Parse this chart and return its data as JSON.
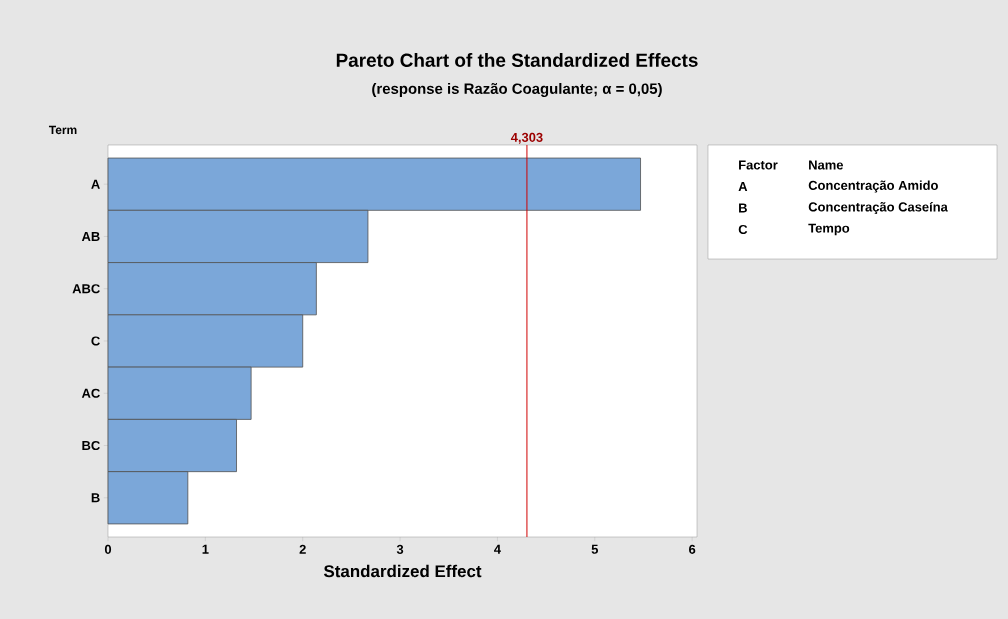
{
  "chart_data": {
    "type": "bar",
    "orientation": "horizontal",
    "title": "Pareto Chart of the Standardized Effects",
    "subtitle": "(response is Razão Coagulante; α = 0,05)",
    "xlabel": "Standardized Effect",
    "ylabel": "Term",
    "categories": [
      "A",
      "AB",
      "ABC",
      "C",
      "AC",
      "BC",
      "B"
    ],
    "values": [
      5.47,
      2.67,
      2.14,
      2.0,
      1.47,
      1.32,
      0.82
    ],
    "color": "#7ba7d9",
    "xlim": [
      0,
      6.05
    ],
    "xticks": [
      0,
      1,
      2,
      3,
      4,
      5,
      6
    ],
    "ref_lines": [
      {
        "axis": "x",
        "value": 4.303,
        "label": "4,303",
        "color": "#d00000"
      }
    ],
    "annotations": [
      "Factor",
      "Name",
      "A",
      "Concentração Amido",
      "B",
      "Concentração Caseína",
      "C",
      "Tempo"
    ]
  }
}
